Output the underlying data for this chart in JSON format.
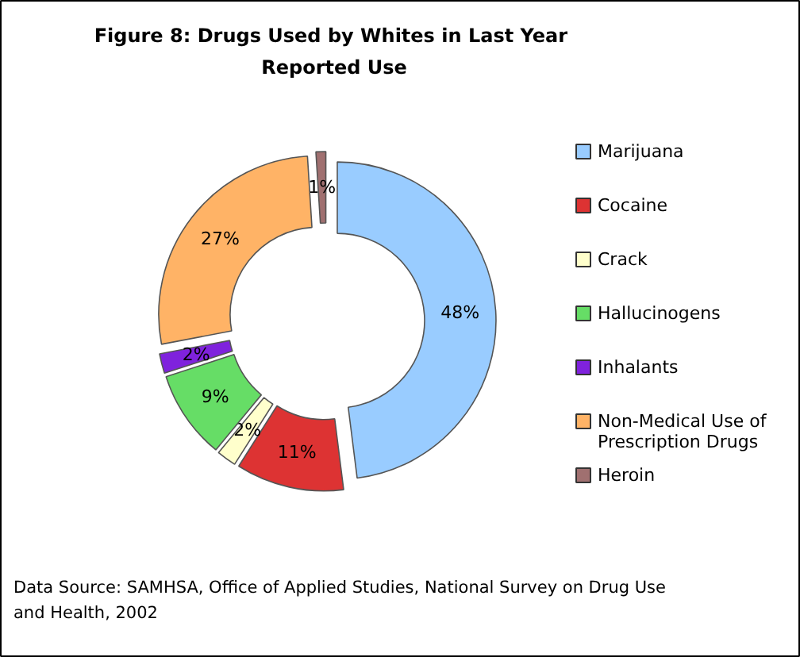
{
  "chart_data": {
    "type": "donut",
    "title": "Figure 8:  Drugs Used by Whites in Last Year",
    "subtitle": "Reported Use",
    "categories": [
      "Marijuana",
      "Cocaine",
      "Crack",
      "Hallucinogens",
      "Inhalants",
      "Non-Medical Use of Prescription Drugs",
      "Heroin"
    ],
    "values": [
      48,
      11,
      2,
      9,
      2,
      27,
      1
    ],
    "value_labels": [
      "48%",
      "11%",
      "2%",
      "9%",
      "2%",
      "27%",
      "1%"
    ],
    "colors": [
      "#99ccff",
      "#dd3333",
      "#ffffcc",
      "#66dd66",
      "#7f22dd",
      "#ffb366",
      "#a07070"
    ],
    "legend": "right",
    "annotations": [
      "Data Source: SAMHSA, Office of Applied Studies, National Survey on Drug Use and Health, 2002"
    ]
  }
}
